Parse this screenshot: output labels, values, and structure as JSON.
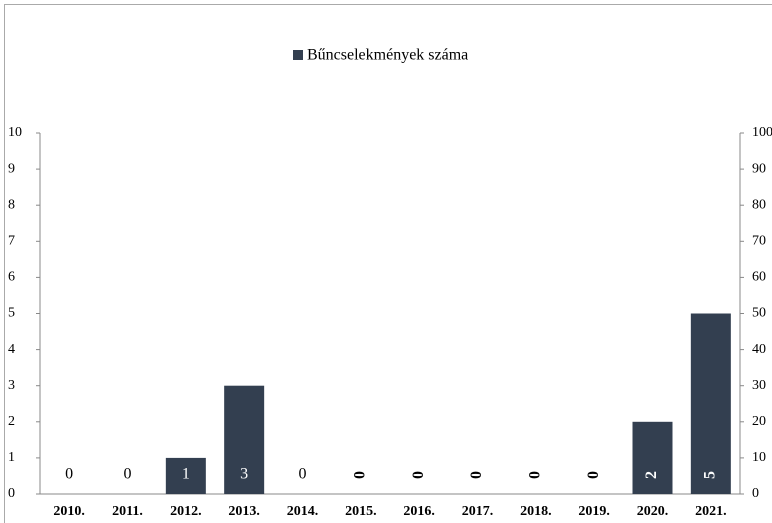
{
  "chart_data": {
    "type": "bar",
    "legend": "Bűncselekmények száma",
    "categories": [
      "2010.",
      "2011.",
      "2012.",
      "2013.",
      "2014.",
      "2015.",
      "2016.",
      "2017.",
      "2018.",
      "2019.",
      "2020.",
      "2021."
    ],
    "values": [
      0,
      0,
      1,
      3,
      0,
      0,
      0,
      0,
      0,
      0,
      2,
      5
    ],
    "color": "#333f50",
    "ylim": [
      0,
      10
    ],
    "yticks": [
      0,
      1,
      2,
      3,
      4,
      5,
      6,
      7,
      8,
      9,
      10
    ],
    "y2lim": [
      0,
      100
    ],
    "y2ticks": [
      0,
      10,
      20,
      30,
      40,
      50,
      60,
      70,
      80,
      90,
      100
    ],
    "grid": false
  }
}
